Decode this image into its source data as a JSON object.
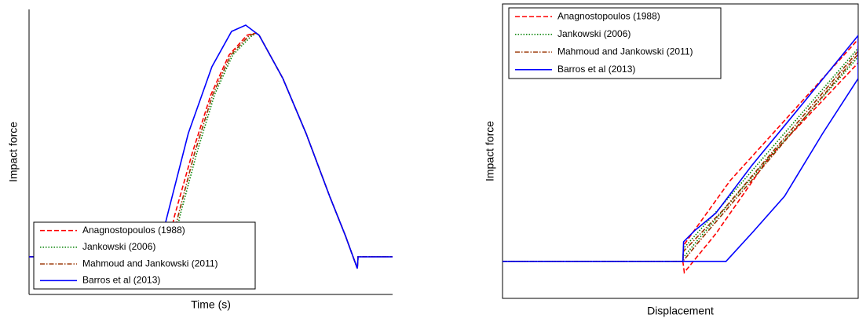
{
  "chart_data": [
    {
      "type": "line",
      "xlabel": "Time (s)",
      "ylabel": "Impact force",
      "xlim": [
        0,
        100
      ],
      "ylim": [
        0,
        100
      ],
      "box": false,
      "legend": "lower left",
      "series": [
        {
          "name": "Anagnostopoulos (1988)",
          "color": "#ff0000",
          "style": "dashed",
          "x": [
            0,
            37.5,
            40,
            45,
            50,
            55,
            60,
            62.4,
            63.3,
            69.8,
            76.2,
            82.7,
            87,
            90.3,
            90.5,
            100
          ],
          "values": [
            13.2,
            13.2,
            27.5,
            50,
            70,
            84,
            91,
            91.7,
            90.9,
            75.8,
            56.5,
            34.4,
            20.7,
            9.1,
            13.2,
            13.2
          ]
        },
        {
          "name": "Jankowski (2006)",
          "color": "#008000",
          "style": "dotted",
          "x": [
            0,
            39,
            41.5,
            46,
            51,
            56,
            61,
            62.6,
            63.3,
            69.8,
            76.2,
            82.7,
            87,
            90.3,
            90.5,
            100
          ],
          "values": [
            13.2,
            13.2,
            27.5,
            49,
            70,
            84,
            90.5,
            91.7,
            90.9,
            75.8,
            56.5,
            34.4,
            20.7,
            9.1,
            13.2,
            13.2
          ]
        },
        {
          "name": "Mahmoud and Jankowski (2011)",
          "color": "#993300",
          "style": "dashdot",
          "x": [
            0,
            38.5,
            41,
            45.5,
            50.5,
            55.5,
            60.5,
            62.5,
            63.3,
            69.8,
            76.2,
            82.7,
            87,
            90.3,
            90.5,
            100
          ],
          "values": [
            13.2,
            13.2,
            27.5,
            49.5,
            70,
            84,
            90.8,
            91.7,
            90.9,
            75.8,
            56.5,
            34.4,
            20.7,
            9.1,
            13.2,
            13.2
          ]
        },
        {
          "name": "Barros et al (2013)",
          "color": "#0000ff",
          "style": "solid",
          "x": [
            0,
            35.2,
            38,
            43.8,
            50.3,
            55.7,
            59.6,
            63.3,
            69.8,
            76.2,
            82.7,
            87,
            90.3,
            90.5,
            100
          ],
          "values": [
            13.2,
            13.2,
            27.5,
            56.5,
            79.9,
            92.3,
            94.5,
            90.9,
            75.8,
            56.5,
            34.4,
            20.7,
            9.1,
            13.2,
            13.2
          ]
        }
      ]
    },
    {
      "type": "line",
      "xlabel": "Displacement",
      "ylabel": "Impact force",
      "xlim": [
        0,
        100
      ],
      "ylim": [
        0,
        100
      ],
      "box": true,
      "legend": "upper left",
      "series": [
        {
          "name": "Anagnostopoulos (1988)",
          "color": "#ff0000",
          "style": "dashed",
          "x": [
            0,
            50.7,
            50.9,
            64,
            100,
            100,
            75,
            60,
            51.1,
            50.7
          ],
          "values": [
            12.5,
            12.5,
            18,
            40,
            88,
            80,
            48,
            22,
            8.8,
            12.5
          ]
        },
        {
          "name": "Jankowski (2006)",
          "color": "#008000",
          "style": "dotted",
          "x": [
            0,
            50.7,
            50.9,
            62,
            100,
            100,
            70,
            55,
            50.9
          ],
          "values": [
            12.5,
            12.5,
            17,
            32,
            85,
            82,
            41,
            20,
            14
          ]
        },
        {
          "name": "Mahmoud and Jankowski (2011)",
          "color": "#993300",
          "style": "dashdot",
          "x": [
            0,
            50.7,
            50.9,
            62,
            100,
            100,
            70,
            55,
            51
          ],
          "values": [
            12.5,
            12.5,
            16,
            30,
            84,
            83,
            40,
            19,
            13
          ]
        },
        {
          "name": "Barros et al (2013)",
          "color": "#0000ff",
          "style": "solid",
          "x": [
            0,
            50.7,
            50.9,
            54,
            60,
            70,
            85,
            100,
            100,
            90,
            79.3,
            70.5,
            62.8,
            50.7
          ],
          "values": [
            12.5,
            12.5,
            19.2,
            23,
            29,
            45,
            67,
            89.3,
            74.7,
            56,
            34.7,
            22.7,
            12.5,
            12.5
          ]
        }
      ]
    }
  ]
}
